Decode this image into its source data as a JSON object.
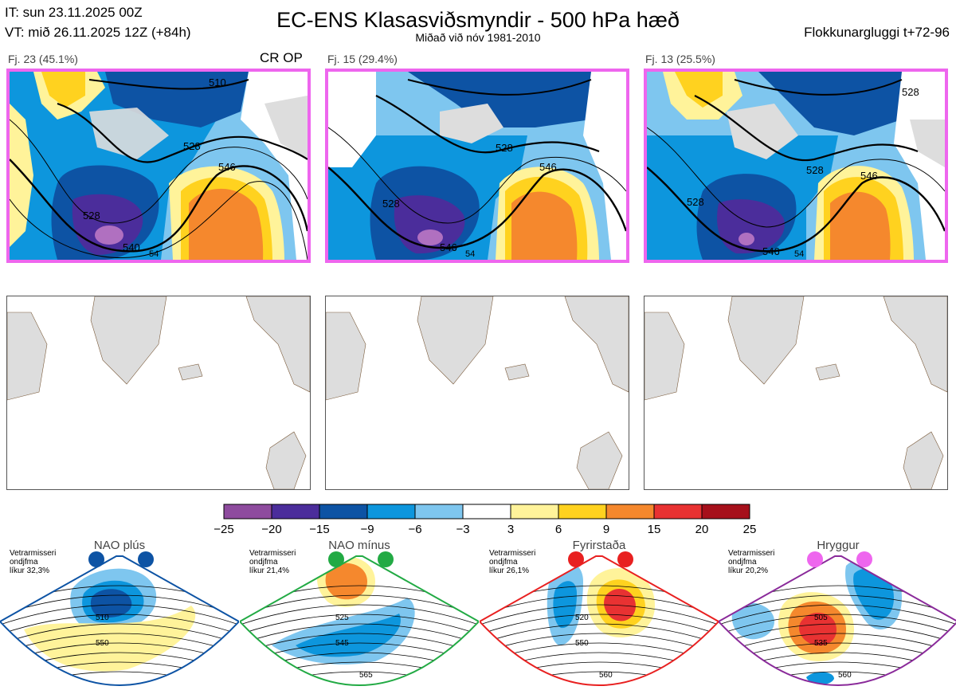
{
  "header": {
    "it_line": "IT: sun 23.11.2025 00Z",
    "vt_line": "VT: mið 26.11.2025 12Z  (+84h)",
    "title": "EC-ENS Klasasviðsmyndir - 500 hPa hæð",
    "subtitle": "Miðað við nóv 1981-2010",
    "window": "Flokkunargluggi t+72-96"
  },
  "clusters": [
    {
      "label": "Fj. 23 (45.1%)",
      "extra": "CR OP",
      "contours": [
        "510",
        "528",
        "528",
        "540",
        "546",
        "54"
      ]
    },
    {
      "label": "Fj. 15 (29.4%)",
      "extra": "",
      "contours": [
        "528",
        "546",
        "528",
        "546",
        "54"
      ]
    },
    {
      "label": "Fj. 13 (25.5%)",
      "extra": "",
      "contours": [
        "528",
        "528",
        "546",
        "528",
        "546",
        "54"
      ]
    }
  ],
  "colorbar": {
    "ticks": [
      "−25",
      "−20",
      "−15",
      "−9",
      "−6",
      "−3",
      "3",
      "6",
      "9",
      "15",
      "20",
      "25"
    ],
    "colors": [
      "#8e4b9e",
      "#4b2d9b",
      "#0d53a4",
      "#0d96dd",
      "#7ec6ef",
      "#ffffff",
      "#fff39a",
      "#ffd21f",
      "#f5882d",
      "#e83232",
      "#a6101b"
    ]
  },
  "regimes": [
    {
      "name": "NAO plús",
      "info": [
        "Vetrarmisseri",
        "ondjfma",
        "líkur 32,3%"
      ],
      "dot_color": "#0d53a4",
      "frame_color": "#0d53a4",
      "contours": [
        "510",
        "550"
      ]
    },
    {
      "name": "NAO mínus",
      "info": [
        "Vetrarmisseri",
        "ondjfma",
        "líkur 21,4%"
      ],
      "dot_color": "#22aa44",
      "frame_color": "#22aa44",
      "contours": [
        "525",
        "545",
        "565"
      ]
    },
    {
      "name": "Fyrirstaða",
      "info": [
        "Vetrarmisseri",
        "ondjfma",
        "líkur 26,1%"
      ],
      "dot_color": "#e82020",
      "frame_color": "#e82020",
      "contours": [
        "520",
        "550",
        "560"
      ]
    },
    {
      "name": "Hryggur",
      "info": [
        "Vetrarmisseri",
        "ondjfma",
        "líkur 20,2%"
      ],
      "dot_color": "#ee66ee",
      "frame_color": "#8a2a9a",
      "contours": [
        "505",
        "535",
        "560"
      ]
    }
  ]
}
